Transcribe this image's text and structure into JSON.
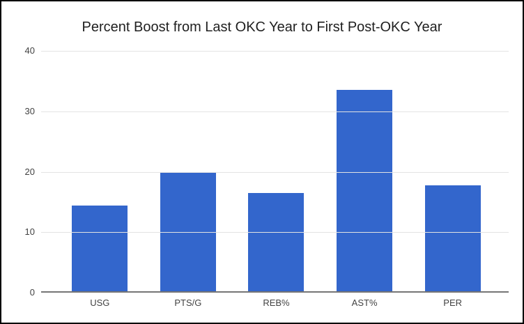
{
  "chart_data": {
    "type": "bar",
    "title": "Percent Boost from Last OKC Year to First Post-OKC Year",
    "categories": [
      "USG",
      "PTS/G",
      "REB%",
      "AST%",
      "PER"
    ],
    "values": [
      14.3,
      19.8,
      16.4,
      33.5,
      17.6
    ],
    "xlabel": "",
    "ylabel": "",
    "ylim": [
      0,
      40
    ],
    "yticks": [
      0,
      10,
      20,
      30,
      40
    ],
    "grid": true,
    "legend": false,
    "bar_color": "#3366cc",
    "gridline_color": "#e3e3e3",
    "axis_line_color": "#757575",
    "tick_label_color": "#424242",
    "title_color": "#1f1f1f"
  }
}
